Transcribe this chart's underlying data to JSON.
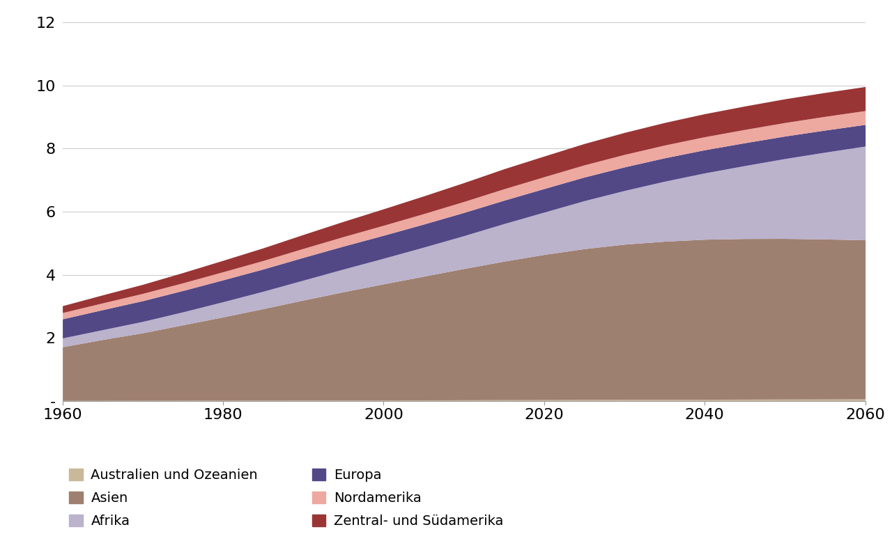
{
  "years": [
    1960,
    1965,
    1970,
    1975,
    1980,
    1985,
    1990,
    1995,
    2000,
    2005,
    2010,
    2015,
    2020,
    2025,
    2030,
    2035,
    2040,
    2045,
    2050,
    2055,
    2060
  ],
  "regions": {
    "Australien und Ozeanien": [
      0.016,
      0.018,
      0.02,
      0.022,
      0.023,
      0.025,
      0.027,
      0.029,
      0.031,
      0.033,
      0.036,
      0.039,
      0.042,
      0.045,
      0.048,
      0.051,
      0.054,
      0.057,
      0.06,
      0.062,
      0.065
    ],
    "Asien": [
      1.7,
      1.93,
      2.14,
      2.39,
      2.64,
      2.9,
      3.17,
      3.43,
      3.68,
      3.92,
      4.16,
      4.39,
      4.6,
      4.78,
      4.92,
      5.01,
      5.07,
      5.09,
      5.09,
      5.07,
      5.04
    ],
    "Afrika": [
      0.28,
      0.31,
      0.36,
      0.41,
      0.48,
      0.55,
      0.63,
      0.72,
      0.81,
      0.92,
      1.04,
      1.19,
      1.34,
      1.52,
      1.7,
      1.9,
      2.1,
      2.31,
      2.53,
      2.75,
      2.97
    ],
    "Europa": [
      0.605,
      0.634,
      0.657,
      0.677,
      0.694,
      0.706,
      0.722,
      0.728,
      0.729,
      0.731,
      0.736,
      0.741,
      0.748,
      0.749,
      0.747,
      0.742,
      0.734,
      0.724,
      0.713,
      0.7,
      0.686
    ],
    "Nordamerika": [
      0.199,
      0.214,
      0.231,
      0.243,
      0.256,
      0.268,
      0.283,
      0.3,
      0.316,
      0.331,
      0.347,
      0.362,
      0.374,
      0.385,
      0.395,
      0.404,
      0.413,
      0.421,
      0.428,
      0.434,
      0.439
    ],
    "Zentral- und Südamerika": [
      0.218,
      0.254,
      0.287,
      0.325,
      0.362,
      0.401,
      0.442,
      0.482,
      0.522,
      0.561,
      0.598,
      0.634,
      0.655,
      0.677,
      0.697,
      0.715,
      0.73,
      0.743,
      0.752,
      0.758,
      0.762
    ]
  },
  "colors": {
    "Australien und Ozeanien": "#c9b89a",
    "Asien": "#9e8070",
    "Afrika": "#bbb2cc",
    "Europa": "#524886",
    "Nordamerika": "#eda8a0",
    "Zentral- und Südamerika": "#9a3535"
  },
  "stack_order": [
    "Australien und Ozeanien",
    "Asien",
    "Afrika",
    "Europa",
    "Nordamerika",
    "Zentral- und Südamerika"
  ],
  "ylim": [
    0,
    12
  ],
  "yticks": [
    0,
    2,
    4,
    6,
    8,
    10,
    12
  ],
  "ytick_labels": [
    "-",
    "2",
    "4",
    "6",
    "8",
    "10",
    "12"
  ],
  "xlim": [
    1960,
    2060
  ],
  "xticks": [
    1960,
    1980,
    2000,
    2020,
    2040,
    2060
  ],
  "background_color": "#ffffff",
  "grid_color": "#cccccc",
  "font_color": "#000000",
  "legend_fontsize": 14,
  "tick_fontsize": 16,
  "legend_order_left": [
    "Australien und Ozeanien",
    "Afrika",
    "Nordamerika"
  ],
  "legend_order_right": [
    "Asien",
    "Europa",
    "Zentral- und Südamerika"
  ]
}
